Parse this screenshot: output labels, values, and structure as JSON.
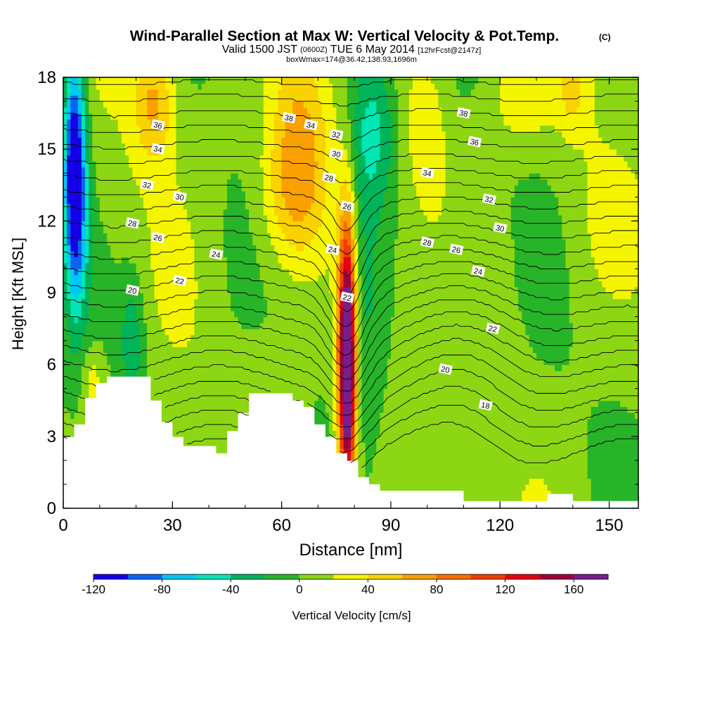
{
  "chart_data": {
    "type": "heatmap",
    "title": "Wind-Parallel Section at Max W: Vertical Velocity & Pot.Temp.",
    "title_mark": "(C)",
    "subtitle_parts": [
      "Valid 1500 JST",
      "(0600Z)",
      "TUE 6 May 2014",
      "[12hrFcst@2147z]"
    ],
    "subtitle2": "boxWmax=174@36.42,138.93,1696m",
    "xlabel": "Distance [nm]",
    "ylabel": "Height [Kft MSL]",
    "xlim": [
      0,
      158
    ],
    "ylim": [
      0,
      18
    ],
    "xticks": [
      0,
      30,
      60,
      90,
      120,
      150
    ],
    "yticks": [
      0,
      3,
      6,
      9,
      12,
      15,
      18
    ],
    "colorbar": {
      "label": "Vertical Velocity [cm/s]",
      "tick_labels": [
        -120,
        -80,
        -40,
        0,
        40,
        80,
        120,
        160
      ],
      "levels": [
        -120,
        -100,
        -80,
        -60,
        -40,
        -20,
        0,
        20,
        40,
        60,
        80,
        100,
        120,
        140,
        160,
        180
      ],
      "colors": [
        "#1400e6",
        "#0a64f0",
        "#00c8f5",
        "#00e6b4",
        "#00b45a",
        "#28b428",
        "#8cd614",
        "#f5f500",
        "#fad200",
        "#faa000",
        "#f56e00",
        "#f03c00",
        "#e60014",
        "#a0003c",
        "#781e8c"
      ]
    },
    "theta_contour_labels": [
      {
        "value": "36",
        "x": 26,
        "y": 16.0
      },
      {
        "value": "34",
        "x": 26,
        "y": 15.0
      },
      {
        "value": "32",
        "x": 23,
        "y": 13.5
      },
      {
        "value": "30",
        "x": 32,
        "y": 13.0
      },
      {
        "value": "28",
        "x": 19,
        "y": 11.9
      },
      {
        "value": "26",
        "x": 26,
        "y": 11.3
      },
      {
        "value": "24",
        "x": 42,
        "y": 10.6
      },
      {
        "value": "22",
        "x": 32,
        "y": 9.5
      },
      {
        "value": "20",
        "x": 19,
        "y": 9.1
      },
      {
        "value": "38",
        "x": 62,
        "y": 16.3
      },
      {
        "value": "34",
        "x": 68,
        "y": 16.0
      },
      {
        "value": "32",
        "x": 75,
        "y": 15.6
      },
      {
        "value": "30",
        "x": 75,
        "y": 14.8
      },
      {
        "value": "28",
        "x": 73,
        "y": 13.8
      },
      {
        "value": "26",
        "x": 78,
        "y": 12.6
      },
      {
        "value": "24",
        "x": 74,
        "y": 10.8
      },
      {
        "value": "22",
        "x": 78,
        "y": 8.8
      },
      {
        "value": "38",
        "x": 110,
        "y": 16.5
      },
      {
        "value": "36",
        "x": 113,
        "y": 15.3
      },
      {
        "value": "34",
        "x": 100,
        "y": 14.0
      },
      {
        "value": "32",
        "x": 117,
        "y": 12.9
      },
      {
        "value": "30",
        "x": 120,
        "y": 11.7
      },
      {
        "value": "28",
        "x": 100,
        "y": 11.1
      },
      {
        "value": "26",
        "x": 108,
        "y": 10.8
      },
      {
        "value": "24",
        "x": 114,
        "y": 9.9
      },
      {
        "value": "22",
        "x": 118,
        "y": 7.5
      },
      {
        "value": "20",
        "x": 105,
        "y": 5.8
      },
      {
        "value": "18",
        "x": 116,
        "y": 4.3
      }
    ],
    "terrain_kft": [
      [
        0,
        2.9
      ],
      [
        3,
        3.5
      ],
      [
        6,
        4.6
      ],
      [
        9,
        5.2
      ],
      [
        12,
        5.5
      ],
      [
        15,
        5.5
      ],
      [
        18,
        5.5
      ],
      [
        21,
        5.5
      ],
      [
        24,
        4.5
      ],
      [
        27,
        3.6
      ],
      [
        30,
        2.9
      ],
      [
        33,
        2.6
      ],
      [
        36,
        2.6
      ],
      [
        39,
        2.6
      ],
      [
        42,
        2.3
      ],
      [
        45,
        3.2
      ],
      [
        48,
        3.9
      ],
      [
        51,
        4.8
      ],
      [
        54,
        4.8
      ],
      [
        57,
        4.8
      ],
      [
        60,
        4.8
      ],
      [
        63,
        4.5
      ],
      [
        66,
        4.2
      ],
      [
        69,
        3.5
      ],
      [
        72,
        2.9
      ],
      [
        75,
        2.3
      ],
      [
        78,
        1.9
      ],
      [
        81,
        1.3
      ],
      [
        84,
        1.0
      ],
      [
        87,
        0.7
      ],
      [
        90,
        0.7
      ],
      [
        95,
        0.7
      ],
      [
        100,
        0.7
      ],
      [
        105,
        0.7
      ],
      [
        110,
        0.3
      ],
      [
        120,
        0.3
      ],
      [
        130,
        0.3
      ],
      [
        133,
        0.6
      ],
      [
        139,
        0.6
      ],
      [
        140,
        0.3
      ],
      [
        158,
        0.3
      ]
    ],
    "w_features": [
      {
        "x": 78,
        "y": 6.0,
        "sx": 1.6,
        "sy": 3.8,
        "w": 195
      },
      {
        "x": 78,
        "y": 7.0,
        "sx": 2.4,
        "sy": 4.8,
        "w": 45
      },
      {
        "x": 65,
        "y": 15.5,
        "sx": 6.0,
        "sy": 3.0,
        "w": 60
      },
      {
        "x": 62,
        "y": 12.8,
        "sx": 6.0,
        "sy": 2.0,
        "w": 30
      },
      {
        "x": 85,
        "y": 16.0,
        "sx": 5.0,
        "sy": 2.6,
        "w": -60
      },
      {
        "x": 82,
        "y": 9.0,
        "sx": 4.0,
        "sy": 4.0,
        "w": -30
      },
      {
        "x": 3,
        "y": 14.5,
        "sx": 2.0,
        "sy": 3.5,
        "w": -110
      },
      {
        "x": 4,
        "y": 12.5,
        "sx": 2.5,
        "sy": 3.5,
        "w": -50
      },
      {
        "x": 25,
        "y": 17.0,
        "sx": 4.0,
        "sy": 1.8,
        "w": 55
      },
      {
        "x": 19,
        "y": 7.0,
        "sx": 2.5,
        "sy": 2.0,
        "w": -40
      },
      {
        "x": 8,
        "y": 5.3,
        "sx": 2.0,
        "sy": 1.0,
        "w": 30
      },
      {
        "x": 125,
        "y": 17.2,
        "sx": 7.0,
        "sy": 1.5,
        "w": 30
      },
      {
        "x": 100,
        "y": 15.5,
        "sx": 4.0,
        "sy": 2.2,
        "w": 25
      },
      {
        "x": 140,
        "y": 17.5,
        "sx": 3.0,
        "sy": 1.2,
        "w": 30
      },
      {
        "x": 112,
        "y": 7.0,
        "sx": 5.0,
        "sy": 3.0,
        "w": -15
      },
      {
        "x": 45,
        "y": 8.0,
        "sx": 5.0,
        "sy": 4.0,
        "w": -5
      },
      {
        "x": 145,
        "y": 12.0,
        "sx": 6.0,
        "sy": 3.5,
        "w": 12
      }
    ]
  }
}
